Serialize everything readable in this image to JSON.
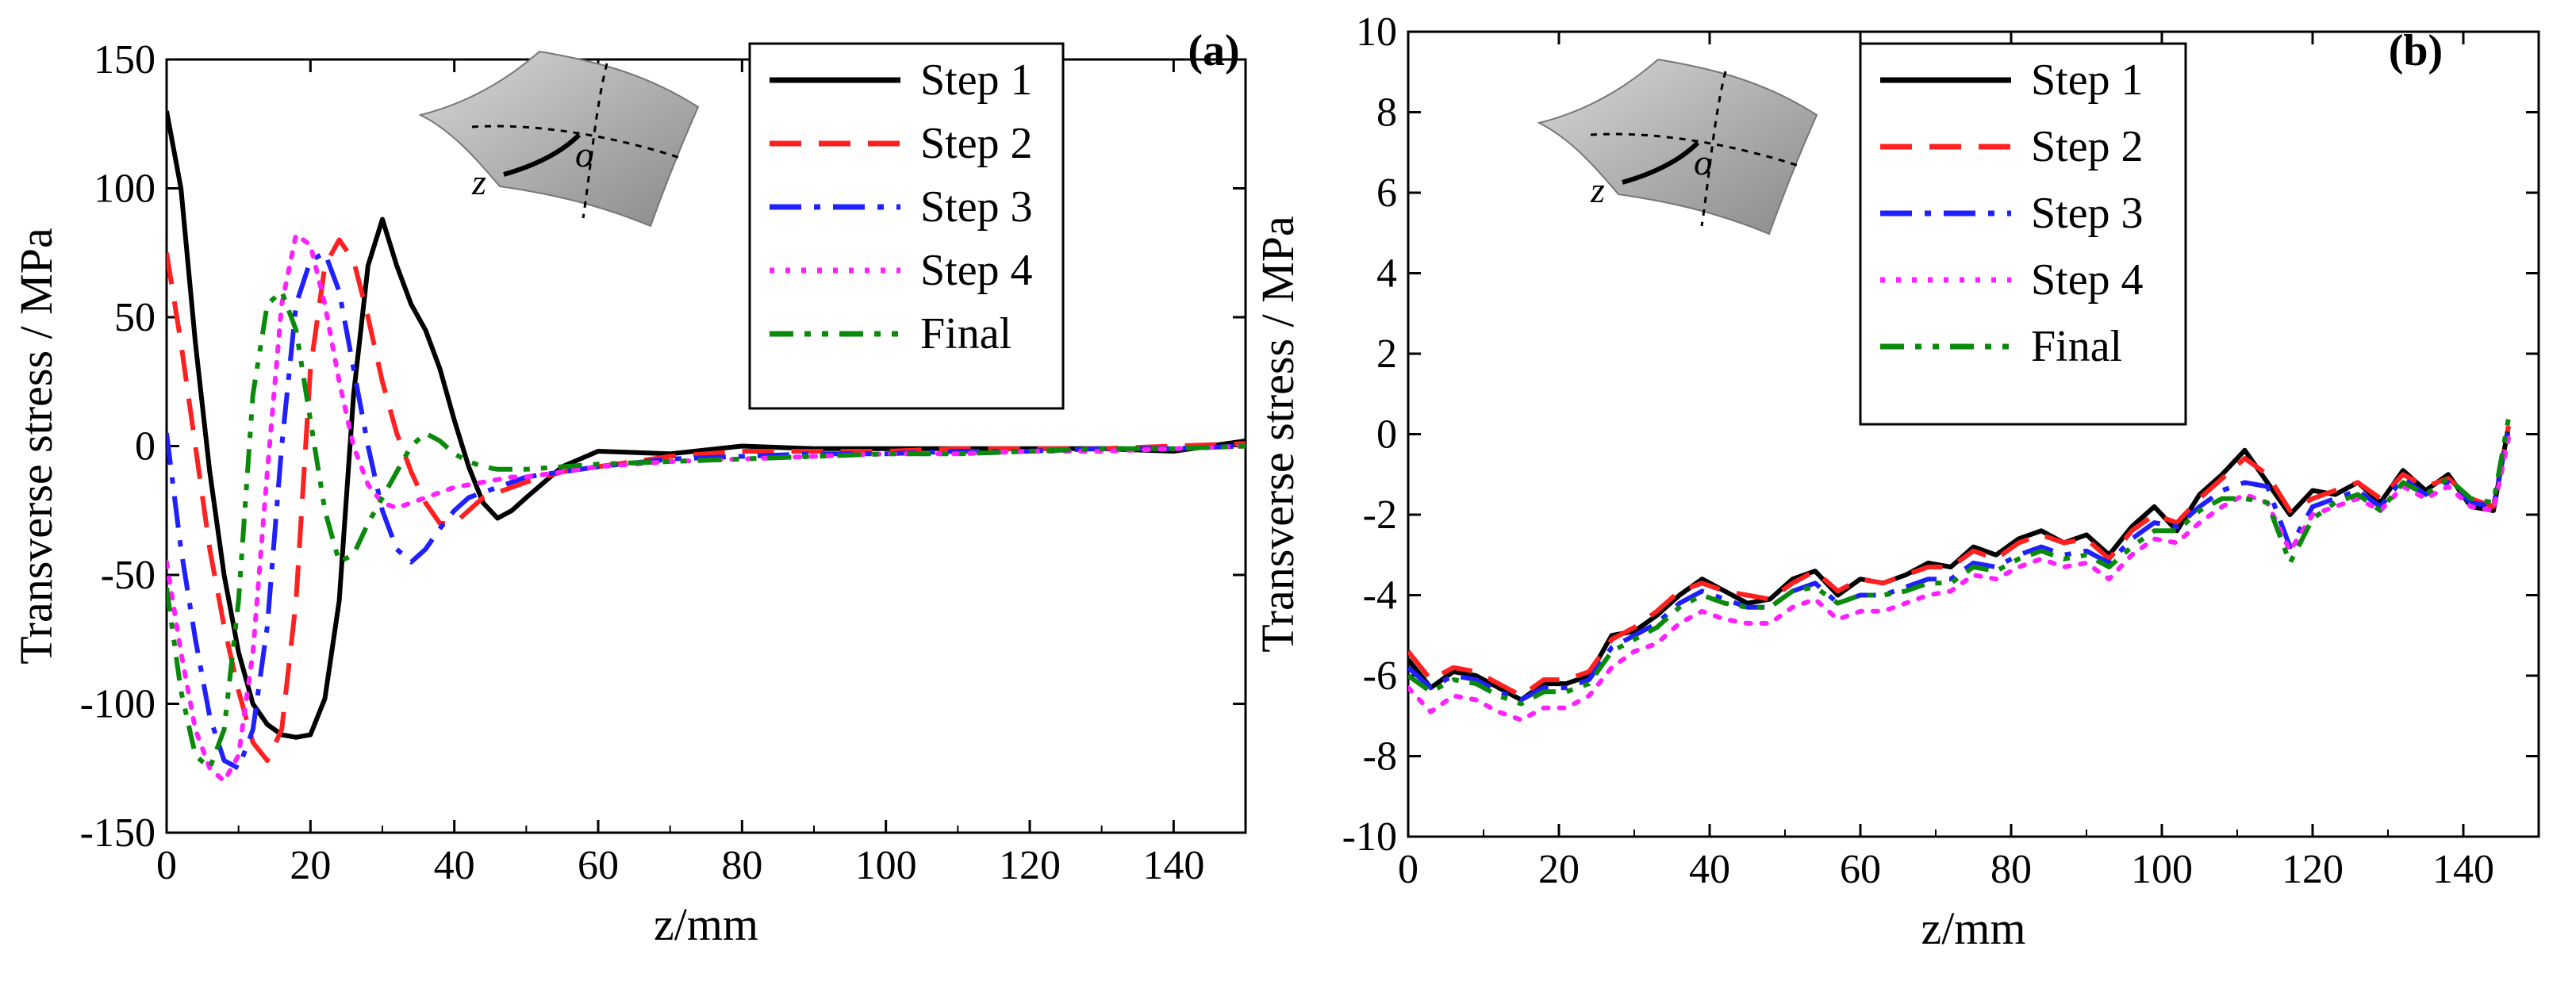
{
  "chart_data": [
    {
      "panel": "(a)",
      "type": "line",
      "xlabel": "z/mm",
      "ylabel": "Transverse stress / MPa",
      "xlim": [
        0,
        150
      ],
      "ylim": [
        -150,
        150
      ],
      "xticks": [
        0,
        20,
        40,
        60,
        80,
        100,
        120,
        140
      ],
      "yticks": [
        -150,
        -100,
        -50,
        0,
        50,
        100,
        150
      ],
      "legend_position": "top-right",
      "inset": {
        "label_z": "z",
        "label_o": "o"
      },
      "series": [
        {
          "name": "Step 1",
          "color": "#000000",
          "style": "solid",
          "x": [
            0,
            2,
            4,
            6,
            8,
            10,
            12,
            14,
            16,
            18,
            20,
            22,
            24,
            26,
            28,
            30,
            32,
            34,
            36,
            38,
            40,
            42,
            44,
            46,
            48,
            50,
            55,
            60,
            70,
            80,
            90,
            100,
            110,
            120,
            130,
            140,
            150
          ],
          "y": [
            130,
            100,
            40,
            -10,
            -50,
            -80,
            -100,
            -108,
            -112,
            -113,
            -112,
            -98,
            -60,
            20,
            70,
            88,
            70,
            55,
            45,
            30,
            10,
            -8,
            -22,
            -28,
            -25,
            -20,
            -8,
            -2,
            -3,
            0,
            -1,
            -1,
            -1,
            -1,
            -1,
            -2,
            2
          ]
        },
        {
          "name": "Step 2",
          "color": "#ff2020",
          "style": "dashed",
          "x": [
            0,
            2,
            4,
            6,
            8,
            10,
            12,
            14,
            16,
            18,
            20,
            22,
            24,
            26,
            28,
            30,
            32,
            34,
            36,
            38,
            40,
            42,
            44,
            46,
            48,
            50,
            55,
            60,
            70,
            80,
            90,
            100,
            110,
            120,
            130,
            140,
            150
          ],
          "y": [
            75,
            40,
            0,
            -40,
            -70,
            -95,
            -115,
            -122,
            -110,
            -60,
            30,
            70,
            80,
            72,
            50,
            25,
            5,
            -10,
            -22,
            -30,
            -30,
            -25,
            -20,
            -18,
            -16,
            -14,
            -10,
            -8,
            -4,
            -2,
            -2,
            -2,
            -1,
            -1,
            -1,
            0,
            1
          ]
        },
        {
          "name": "Step 3",
          "color": "#2020ff",
          "style": "dashdot",
          "x": [
            0,
            2,
            4,
            6,
            8,
            10,
            12,
            14,
            16,
            18,
            20,
            22,
            24,
            26,
            28,
            30,
            32,
            34,
            36,
            38,
            40,
            42,
            44,
            46,
            48,
            50,
            55,
            60,
            70,
            80,
            90,
            100,
            110,
            120,
            130,
            140,
            150
          ],
          "y": [
            5,
            -40,
            -75,
            -105,
            -122,
            -125,
            -110,
            -70,
            0,
            55,
            72,
            75,
            60,
            30,
            0,
            -25,
            -40,
            -45,
            -40,
            -32,
            -25,
            -20,
            -18,
            -16,
            -14,
            -12,
            -10,
            -8,
            -5,
            -4,
            -3,
            -3,
            -2,
            -2,
            -1,
            -1,
            0
          ]
        },
        {
          "name": "Step 4",
          "color": "#ff20ff",
          "style": "dotted",
          "x": [
            0,
            2,
            4,
            6,
            8,
            10,
            12,
            14,
            16,
            18,
            20,
            22,
            24,
            26,
            28,
            30,
            32,
            34,
            36,
            38,
            40,
            42,
            44,
            46,
            48,
            50,
            55,
            60,
            70,
            80,
            90,
            100,
            110,
            120,
            130,
            140,
            150
          ],
          "y": [
            -45,
            -80,
            -110,
            -125,
            -130,
            -120,
            -80,
            -10,
            55,
            82,
            78,
            55,
            25,
            0,
            -15,
            -22,
            -24,
            -22,
            -20,
            -18,
            -16,
            -15,
            -14,
            -13,
            -12,
            -12,
            -10,
            -8,
            -6,
            -5,
            -4,
            -3,
            -3,
            -2,
            -2,
            -1,
            0
          ]
        },
        {
          "name": "Final",
          "color": "#0a8a0a",
          "style": "dashdotdot",
          "x": [
            0,
            2,
            4,
            6,
            8,
            10,
            12,
            14,
            16,
            18,
            20,
            22,
            24,
            26,
            28,
            30,
            32,
            34,
            36,
            38,
            40,
            42,
            44,
            46,
            48,
            50,
            55,
            60,
            70,
            80,
            90,
            100,
            110,
            120,
            130,
            140,
            150
          ],
          "y": [
            -55,
            -95,
            -120,
            -125,
            -110,
            -60,
            20,
            55,
            60,
            45,
            10,
            -25,
            -45,
            -42,
            -30,
            -20,
            -10,
            0,
            5,
            2,
            -3,
            -6,
            -8,
            -9,
            -9,
            -9,
            -8,
            -7,
            -6,
            -5,
            -4,
            -3,
            -3,
            -2,
            -1,
            -1,
            0
          ]
        }
      ]
    },
    {
      "panel": "(b)",
      "type": "line",
      "xlabel": "z/mm",
      "ylabel": "Transverse stress / MPa",
      "xlim": [
        0,
        150
      ],
      "ylim": [
        -10,
        10
      ],
      "xticks": [
        0,
        20,
        40,
        60,
        80,
        100,
        120,
        140
      ],
      "yticks": [
        -10,
        -8,
        -6,
        -4,
        -2,
        0,
        2,
        4,
        6,
        8,
        10
      ],
      "legend_position": "top-center",
      "inset": {
        "label_z": "z",
        "label_o": "o"
      },
      "series": [
        {
          "name": "Step 1",
          "color": "#000000",
          "style": "solid",
          "x": [
            0,
            3,
            6,
            9,
            12,
            15,
            18,
            21,
            24,
            27,
            30,
            33,
            36,
            39,
            42,
            45,
            48,
            51,
            54,
            57,
            60,
            63,
            66,
            69,
            72,
            75,
            78,
            81,
            84,
            87,
            90,
            93,
            96,
            99,
            102,
            105,
            108,
            111,
            114,
            117,
            120,
            123,
            126,
            129,
            132,
            135,
            138,
            141,
            144,
            146
          ],
          "y": [
            -5.6,
            -6.3,
            -5.9,
            -6.0,
            -6.3,
            -6.6,
            -6.2,
            -6.2,
            -6.0,
            -5.0,
            -4.9,
            -4.5,
            -4.0,
            -3.6,
            -3.9,
            -4.2,
            -4.1,
            -3.6,
            -3.4,
            -4.0,
            -3.6,
            -3.7,
            -3.5,
            -3.2,
            -3.3,
            -2.8,
            -3.0,
            -2.6,
            -2.4,
            -2.7,
            -2.5,
            -3.0,
            -2.3,
            -1.8,
            -2.4,
            -1.5,
            -1.0,
            -0.4,
            -1.2,
            -2.0,
            -1.4,
            -1.5,
            -1.2,
            -1.7,
            -0.9,
            -1.4,
            -1.0,
            -1.8,
            -1.9,
            0.2
          ]
        },
        {
          "name": "Step 2",
          "color": "#ff2020",
          "style": "dashed",
          "x": [
            0,
            3,
            6,
            9,
            12,
            15,
            18,
            21,
            24,
            27,
            30,
            33,
            36,
            39,
            42,
            45,
            48,
            51,
            54,
            57,
            60,
            63,
            66,
            69,
            72,
            75,
            78,
            81,
            84,
            87,
            90,
            93,
            96,
            99,
            102,
            105,
            108,
            111,
            114,
            117,
            120,
            123,
            126,
            129,
            132,
            135,
            138,
            141,
            144,
            146
          ],
          "y": [
            -5.4,
            -6.1,
            -5.8,
            -5.9,
            -6.2,
            -6.5,
            -6.1,
            -6.1,
            -5.9,
            -5.1,
            -4.8,
            -4.4,
            -3.9,
            -3.7,
            -3.9,
            -4.0,
            -4.1,
            -3.7,
            -3.4,
            -3.9,
            -3.6,
            -3.7,
            -3.5,
            -3.3,
            -3.3,
            -2.9,
            -3.1,
            -2.7,
            -2.5,
            -2.7,
            -2.6,
            -3.1,
            -2.4,
            -2.0,
            -2.2,
            -1.6,
            -1.1,
            -0.6,
            -1.0,
            -1.9,
            -1.6,
            -1.4,
            -1.2,
            -1.6,
            -1.0,
            -1.3,
            -1.1,
            -1.6,
            -1.8,
            0.2
          ]
        },
        {
          "name": "Step 3",
          "color": "#2020ff",
          "style": "dashdot",
          "x": [
            0,
            3,
            6,
            9,
            12,
            15,
            18,
            21,
            24,
            27,
            30,
            33,
            36,
            39,
            42,
            45,
            48,
            51,
            54,
            57,
            60,
            63,
            66,
            69,
            72,
            75,
            78,
            81,
            84,
            87,
            90,
            93,
            96,
            99,
            102,
            105,
            108,
            111,
            114,
            117,
            120,
            123,
            126,
            129,
            132,
            135,
            138,
            141,
            144,
            146
          ],
          "y": [
            -5.8,
            -6.3,
            -6.0,
            -6.1,
            -6.4,
            -6.6,
            -6.3,
            -6.3,
            -6.1,
            -5.3,
            -5.0,
            -4.7,
            -4.2,
            -3.9,
            -4.1,
            -4.3,
            -4.3,
            -3.9,
            -3.7,
            -4.2,
            -4.0,
            -4.0,
            -3.8,
            -3.6,
            -3.6,
            -3.2,
            -3.3,
            -3.0,
            -2.8,
            -3.0,
            -2.9,
            -3.2,
            -2.6,
            -2.2,
            -2.3,
            -1.8,
            -1.4,
            -1.2,
            -1.3,
            -2.8,
            -1.8,
            -1.6,
            -1.4,
            -1.8,
            -1.1,
            -1.5,
            -1.2,
            -1.7,
            -1.8,
            0.1
          ]
        },
        {
          "name": "Step 4",
          "color": "#ff20ff",
          "style": "dotted",
          "x": [
            0,
            3,
            6,
            9,
            12,
            15,
            18,
            21,
            24,
            27,
            30,
            33,
            36,
            39,
            42,
            45,
            48,
            51,
            54,
            57,
            60,
            63,
            66,
            69,
            72,
            75,
            78,
            81,
            84,
            87,
            90,
            93,
            96,
            99,
            102,
            105,
            108,
            111,
            114,
            117,
            120,
            123,
            126,
            129,
            132,
            135,
            138,
            141,
            144,
            146
          ],
          "y": [
            -6.3,
            -6.9,
            -6.5,
            -6.6,
            -6.9,
            -7.1,
            -6.8,
            -6.8,
            -6.5,
            -5.8,
            -5.4,
            -5.2,
            -4.7,
            -4.4,
            -4.6,
            -4.7,
            -4.7,
            -4.3,
            -4.1,
            -4.6,
            -4.4,
            -4.4,
            -4.2,
            -4.0,
            -3.9,
            -3.5,
            -3.6,
            -3.3,
            -3.1,
            -3.3,
            -3.2,
            -3.6,
            -3.0,
            -2.6,
            -2.7,
            -2.2,
            -1.8,
            -1.5,
            -1.7,
            -2.9,
            -2.0,
            -1.8,
            -1.6,
            -1.9,
            -1.3,
            -1.6,
            -1.3,
            -1.8,
            -1.9,
            -0.1
          ]
        },
        {
          "name": "Final",
          "color": "#0a8a0a",
          "style": "dashdotdot",
          "x": [
            0,
            3,
            6,
            9,
            12,
            15,
            18,
            21,
            24,
            27,
            30,
            33,
            36,
            39,
            42,
            45,
            48,
            51,
            54,
            57,
            60,
            63,
            66,
            69,
            72,
            75,
            78,
            81,
            84,
            87,
            90,
            93,
            96,
            99,
            102,
            105,
            108,
            111,
            114,
            117,
            120,
            123,
            126,
            129,
            132,
            135,
            138,
            141,
            144,
            146
          ],
          "y": [
            -6.0,
            -6.4,
            -6.1,
            -6.2,
            -6.5,
            -6.7,
            -6.4,
            -6.4,
            -6.2,
            -5.4,
            -5.1,
            -4.8,
            -4.3,
            -4.0,
            -4.2,
            -4.3,
            -4.3,
            -3.9,
            -3.8,
            -4.2,
            -4.0,
            -4.0,
            -3.9,
            -3.7,
            -3.7,
            -3.3,
            -3.4,
            -3.1,
            -2.9,
            -3.1,
            -3.0,
            -3.3,
            -2.8,
            -2.4,
            -2.4,
            -1.9,
            -1.6,
            -1.6,
            -1.7,
            -3.2,
            -2.1,
            -1.7,
            -1.5,
            -1.9,
            -1.2,
            -1.5,
            -1.1,
            -1.6,
            -1.7,
            0.4
          ]
        }
      ]
    }
  ]
}
